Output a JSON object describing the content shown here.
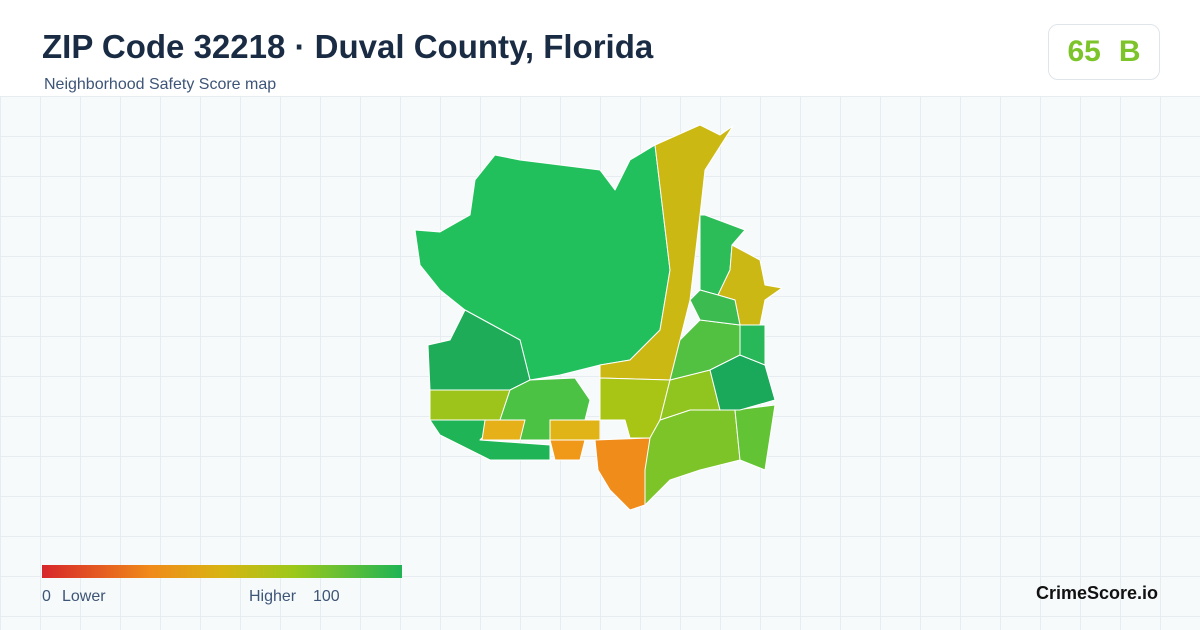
{
  "header": {
    "title": "ZIP Code 32218 · Duval County, Florida",
    "subtitle": "Neighborhood Safety Score map"
  },
  "score": {
    "value": 65,
    "grade": "B"
  },
  "legend": {
    "min": 0,
    "min_label": "Lower",
    "max_label": "Higher",
    "max": 100
  },
  "brand": "CrimeScore.io"
}
